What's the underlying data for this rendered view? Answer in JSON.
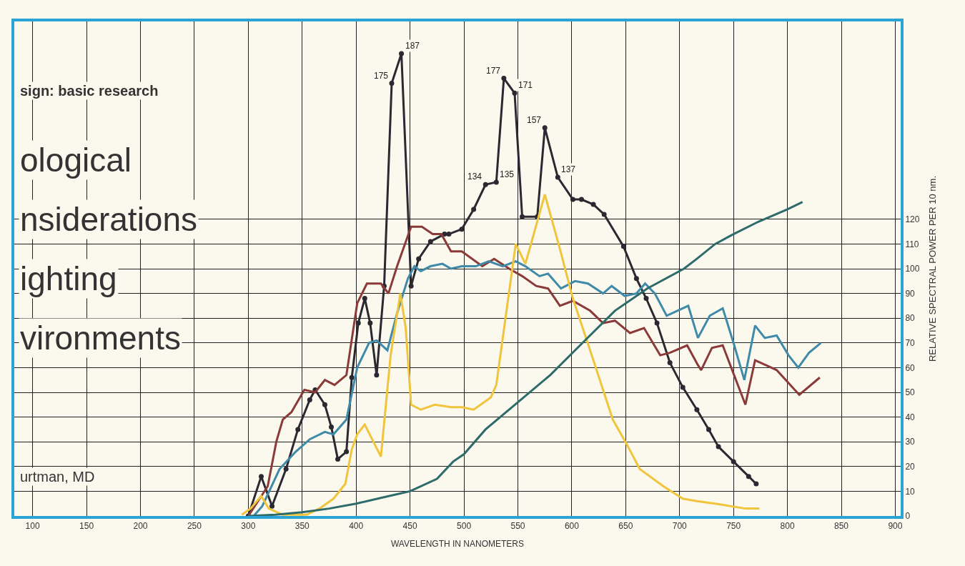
{
  "chart_data": {
    "type": "line",
    "xlabel": "WAVELENGTH IN NANOMETERS",
    "ylabel": "RELATIVE SPECTRAL POWER PER 10 nm.",
    "annotations": [
      "sign: basic research",
      "ological",
      "nsiderations",
      "ighting",
      "vironments",
      "urtman, MD"
    ],
    "xlim": [
      83,
      905
    ],
    "ylim": [
      0,
      200
    ],
    "xticks": [
      100,
      150,
      200,
      250,
      300,
      350,
      400,
      450,
      500,
      550,
      600,
      650,
      700,
      750,
      800,
      850,
      900
    ],
    "yticks": [
      0,
      10,
      20,
      30,
      40,
      50,
      60,
      70,
      80,
      90,
      100,
      110,
      120
    ],
    "grid": true,
    "line_style": "solid",
    "series": [
      {
        "color": "#2a2830",
        "marker": "circle",
        "x": [
          300,
          312,
          322,
          335,
          346,
          357,
          362,
          371,
          377,
          383,
          391,
          396,
          402,
          408,
          413,
          419,
          426,
          433,
          442,
          451,
          458,
          469,
          482,
          486,
          498,
          509,
          520,
          530,
          537,
          547,
          554,
          568,
          575,
          587,
          601,
          609,
          620,
          630,
          648,
          660,
          669,
          679,
          691,
          703,
          716,
          727,
          736,
          750,
          764,
          771
        ],
        "values": [
          0,
          16,
          4,
          19,
          35,
          47,
          51,
          45,
          36,
          23,
          26,
          56,
          78,
          88,
          78,
          57,
          93,
          175,
          187,
          93,
          104,
          111,
          114,
          114,
          116,
          124,
          134,
          135,
          177,
          171,
          121,
          121,
          157,
          137,
          128,
          128,
          126,
          122,
          109,
          96,
          88,
          78,
          62,
          52,
          43,
          35,
          28,
          22,
          16,
          13
        ],
        "value_labels": [
          null,
          null,
          null,
          null,
          null,
          null,
          null,
          null,
          null,
          null,
          null,
          null,
          null,
          null,
          null,
          null,
          null,
          "175",
          "187",
          null,
          null,
          null,
          null,
          null,
          null,
          null,
          "134",
          "135",
          "177",
          "171",
          null,
          null,
          "157",
          "137",
          null,
          null,
          null,
          null,
          null,
          null,
          null,
          null,
          null,
          null,
          null,
          null,
          null,
          null,
          null,
          null
        ]
      },
      {
        "color": "#8b3a3a",
        "x": [
          300,
          318,
          326,
          332,
          340,
          352,
          362,
          371,
          380,
          391,
          401,
          410,
          423,
          430,
          438,
          451,
          461,
          471,
          479,
          488,
          498,
          517,
          528,
          542,
          554,
          567,
          578,
          589,
          601,
          617,
          629,
          640,
          654,
          667,
          682,
          691,
          707,
          717,
          720,
          730,
          740,
          761,
          770,
          790,
          811,
          830
        ],
        "values": [
          0,
          12,
          30,
          39,
          42,
          51,
          50,
          55,
          53,
          57,
          86,
          94,
          94,
          90,
          101,
          117,
          117,
          114,
          114,
          107,
          107,
          101,
          104,
          100,
          97,
          93,
          92,
          85,
          87,
          83,
          78,
          79,
          74,
          76,
          65,
          66,
          69,
          61,
          59,
          68,
          69,
          45,
          63,
          59,
          49,
          56
        ]
      },
      {
        "color": "#3f8aa8",
        "x": [
          305,
          313,
          329,
          344,
          357,
          371,
          379,
          391,
          401,
          412,
          419,
          429,
          438,
          448,
          454,
          460,
          469,
          480,
          488,
          498,
          511,
          523,
          536,
          548,
          557,
          570,
          578,
          590,
          603,
          615,
          629,
          637,
          649,
          660,
          668,
          677,
          688,
          708,
          717,
          728,
          740,
          750,
          760,
          770,
          779,
          790,
          801,
          810,
          820,
          831
        ],
        "values": [
          0,
          4,
          19,
          26,
          31,
          34,
          33,
          39,
          60,
          70,
          71,
          67,
          82,
          96,
          101,
          99,
          101,
          102,
          100,
          101,
          101,
          103,
          101,
          103,
          101,
          97,
          98,
          92,
          95,
          94,
          90,
          93,
          89,
          90,
          94,
          90,
          81,
          85,
          72,
          81,
          84,
          70,
          55,
          77,
          72,
          73,
          65,
          60,
          66,
          70
        ]
      },
      {
        "color": "#f0c43c",
        "x": [
          294,
          302,
          312,
          319,
          332,
          354,
          366,
          379,
          390,
          396,
          401,
          408,
          416,
          423,
          432,
          441,
          446,
          451,
          460,
          473,
          488,
          498,
          509,
          525,
          530,
          548,
          557,
          575,
          589,
          601,
          617,
          629,
          638,
          651,
          663,
          685,
          703,
          716,
          733,
          761,
          774
        ],
        "values": [
          0.5,
          3,
          8,
          3,
          0.5,
          0.5,
          3,
          7,
          13,
          27,
          33,
          37,
          30,
          24,
          65,
          90,
          76,
          45,
          43,
          45,
          44,
          44,
          43,
          48,
          53,
          110,
          102,
          130,
          108,
          88,
          67,
          51,
          39,
          29,
          19,
          12,
          7,
          6,
          5,
          3,
          3
        ]
      },
      {
        "color": "#2d6b6b",
        "x": [
          300,
          325,
          350,
          375,
          400,
          425,
          450,
          475,
          490,
          500,
          520,
          550,
          580,
          610,
          640,
          670,
          704,
          716,
          733,
          750,
          773,
          800,
          814
        ],
        "values": [
          0,
          0.5,
          1.5,
          3,
          5,
          7.5,
          10,
          15,
          22,
          25,
          35,
          46,
          57,
          70,
          83,
          92,
          100,
          104,
          110,
          114,
          119,
          124,
          127
        ]
      }
    ]
  }
}
